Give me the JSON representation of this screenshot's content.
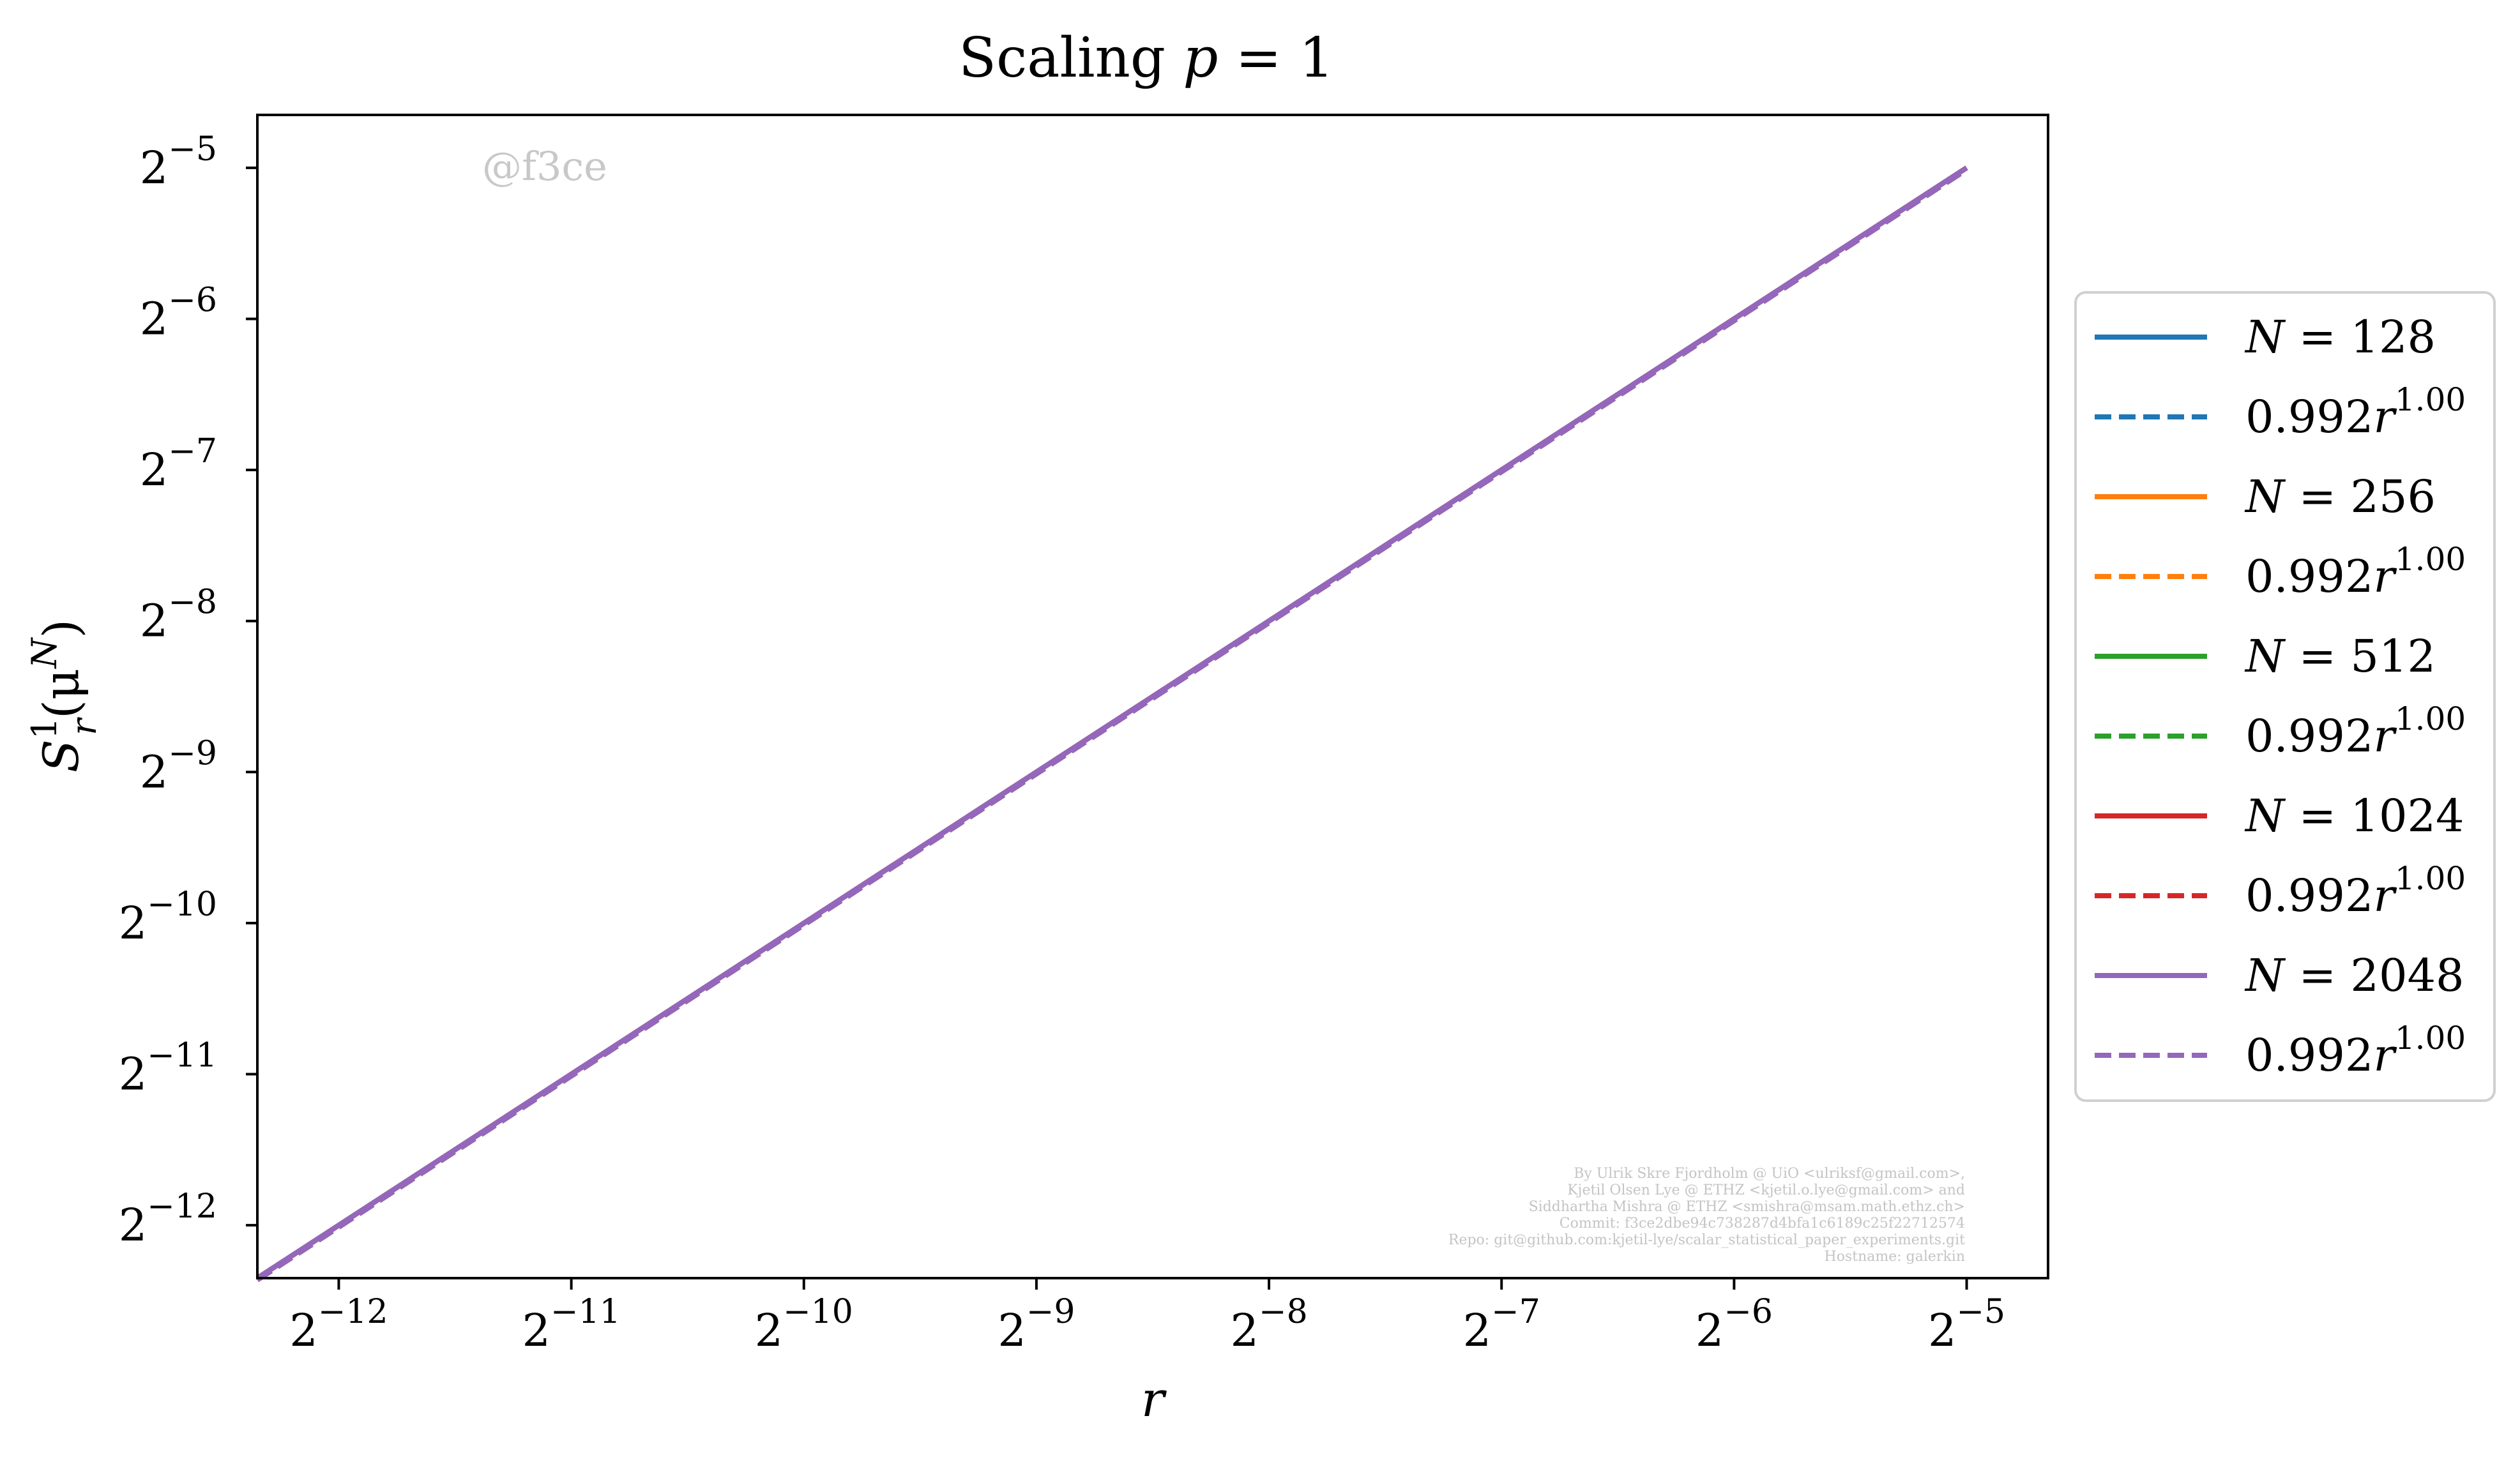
{
  "watermark": "@f3ce",
  "credits": [
    "By Ulrik Skre Fjordholm @ UiO <ulriksf@gmail.com>,",
    "Kjetil Olsen Lye @ ETHZ <kjetil.o.lye@gmail.com> and",
    "Siddhartha Mishra @ ETHZ <smishra@msam.math.ethz.ch>",
    "Commit: f3ce2dbe94c738287d4bfa1c6189c25f22712574",
    "Repo: git@github.com:kjetil-lye/scalar_statistical_paper_experiments.git",
    "Hostname: galerkin"
  ],
  "colors": {
    "N128": "#1f77b4",
    "N256": "#ff7f0e",
    "N512": "#2ca02c",
    "N1024": "#d62728",
    "N2048": "#9467bd"
  },
  "chart_data": {
    "type": "line",
    "title": "Scaling p = 1",
    "title_parts": {
      "text": "Scaling ",
      "math_var": "p",
      "math_rest": " = 1"
    },
    "xlabel": "r",
    "ylabel": {
      "S": "S",
      "sup": "1",
      "sub": "r",
      "rest": "(μ",
      "rest_sup": "N",
      "close": ")"
    },
    "xscale": "log2",
    "yscale": "log2",
    "xlim_exp": [
      -12.35,
      -4.65
    ],
    "ylim_exp": [
      -12.35,
      -4.65
    ],
    "xticks": [
      {
        "base": "2",
        "exp": "−12",
        "value": -12
      },
      {
        "base": "2",
        "exp": "−11",
        "value": -11
      },
      {
        "base": "2",
        "exp": "−10",
        "value": -10
      },
      {
        "base": "2",
        "exp": "−9",
        "value": -9
      },
      {
        "base": "2",
        "exp": "−8",
        "value": -8
      },
      {
        "base": "2",
        "exp": "−7",
        "value": -7
      },
      {
        "base": "2",
        "exp": "−6",
        "value": -6
      },
      {
        "base": "2",
        "exp": "−5",
        "value": -5
      }
    ],
    "yticks": [
      {
        "base": "2",
        "exp": "−5",
        "value": -5
      },
      {
        "base": "2",
        "exp": "−6",
        "value": -6
      },
      {
        "base": "2",
        "exp": "−7",
        "value": -7
      },
      {
        "base": "2",
        "exp": "−8",
        "value": -8
      },
      {
        "base": "2",
        "exp": "−9",
        "value": -9
      },
      {
        "base": "2",
        "exp": "−10",
        "value": -10
      },
      {
        "base": "2",
        "exp": "−11",
        "value": -11
      },
      {
        "base": "2",
        "exp": "−12",
        "value": -12
      }
    ],
    "grid": false,
    "legend_position": "outside right",
    "series": [
      {
        "name": "N = 128",
        "label_var": "N",
        "label_rest": " = 128",
        "color": "#1f77b4",
        "style": "solid",
        "x": [
          0.000244,
          0.03125
        ],
        "y": [
          0.000244,
          0.03125
        ]
      },
      {
        "name": "0.992r^1.00",
        "label_var": "0.992r",
        "label_sup": "1.00",
        "color": "#1f77b4",
        "style": "dashed",
        "x": [
          0.000244,
          0.03125
        ],
        "y": [
          0.000242,
          0.031
        ]
      },
      {
        "name": "N = 256",
        "label_var": "N",
        "label_rest": " = 256",
        "color": "#ff7f0e",
        "style": "solid",
        "x": [
          0.000244,
          0.03125
        ],
        "y": [
          0.000244,
          0.03125
        ]
      },
      {
        "name": "0.992r^1.00",
        "label_var": "0.992r",
        "label_sup": "1.00",
        "color": "#ff7f0e",
        "style": "dashed",
        "x": [
          0.000244,
          0.03125
        ],
        "y": [
          0.000242,
          0.031
        ]
      },
      {
        "name": "N = 512",
        "label_var": "N",
        "label_rest": " = 512",
        "color": "#2ca02c",
        "style": "solid",
        "x": [
          0.000244,
          0.03125
        ],
        "y": [
          0.000244,
          0.03125
        ]
      },
      {
        "name": "0.992r^1.00",
        "label_var": "0.992r",
        "label_sup": "1.00",
        "color": "#2ca02c",
        "style": "dashed",
        "x": [
          0.000244,
          0.03125
        ],
        "y": [
          0.000242,
          0.031
        ]
      },
      {
        "name": "N = 1024",
        "label_var": "N",
        "label_rest": " = 1024",
        "color": "#d62728",
        "style": "solid",
        "x": [
          0.000244,
          0.03125
        ],
        "y": [
          0.000244,
          0.03125
        ]
      },
      {
        "name": "0.992r^1.00",
        "label_var": "0.992r",
        "label_sup": "1.00",
        "color": "#d62728",
        "style": "dashed",
        "x": [
          0.000244,
          0.03125
        ],
        "y": [
          0.000242,
          0.031
        ]
      },
      {
        "name": "N = 2048",
        "label_var": "N",
        "label_rest": " = 2048",
        "color": "#9467bd",
        "style": "solid",
        "x": [
          0.000244,
          0.03125
        ],
        "y": [
          0.000244,
          0.03125
        ]
      },
      {
        "name": "0.992r^1.00",
        "label_var": "0.992r",
        "label_sup": "1.00",
        "color": "#9467bd",
        "style": "dashed",
        "x": [
          0.000244,
          0.03125
        ],
        "y": [
          0.000242,
          0.031
        ]
      }
    ]
  }
}
